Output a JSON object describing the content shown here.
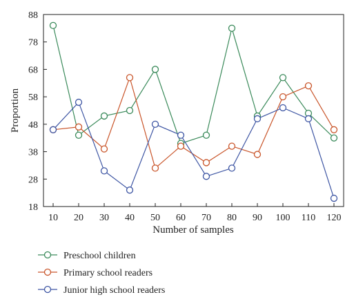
{
  "chart_data": {
    "type": "line",
    "title": "",
    "xlabel": "Number of samples",
    "ylabel": "Proportion",
    "x": [
      10,
      20,
      30,
      40,
      50,
      60,
      70,
      80,
      90,
      100,
      110,
      120
    ],
    "xlim": [
      10,
      120
    ],
    "ylim": [
      18,
      88
    ],
    "yticks": [
      18,
      28,
      38,
      48,
      58,
      68,
      78,
      88
    ],
    "grid": false,
    "legend_position": "bottom",
    "series": [
      {
        "name": "Preschool children",
        "color": "#3a8a5a",
        "values": [
          84,
          44,
          51,
          53,
          68,
          41,
          44,
          83,
          51,
          65,
          52,
          43
        ]
      },
      {
        "name": "Primary school readers",
        "color": "#c9552a",
        "values": [
          46,
          47,
          39,
          65,
          32,
          40,
          34,
          40,
          37,
          58,
          62,
          46
        ]
      },
      {
        "name": "Junior high school readers",
        "color": "#3d55a3",
        "values": [
          46,
          56,
          31,
          24,
          48,
          44,
          29,
          32,
          50,
          54,
          50,
          21
        ]
      }
    ]
  }
}
